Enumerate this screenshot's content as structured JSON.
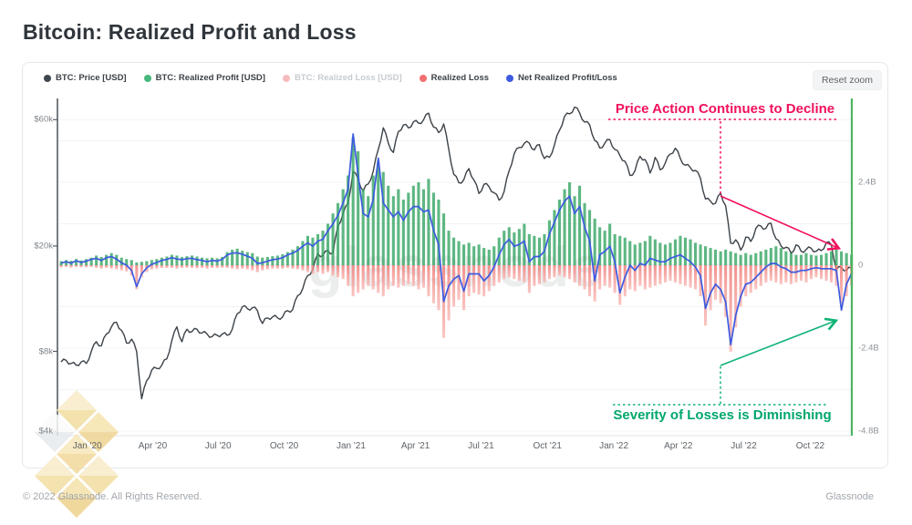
{
  "page": {
    "title": "Bitcoin: Realized Profit and Loss",
    "footer_left": "© 2022 Glassnode. All Rights Reserved.",
    "footer_right": "Glassnode",
    "watermark": "glassnode"
  },
  "toolbar": {
    "reset_zoom_label": "Reset zoom"
  },
  "legend": {
    "items": [
      {
        "label": "BTC: Price [USD]",
        "color": "#3f464d",
        "disabled": false
      },
      {
        "label": "BTC: Realized Profit [USD]",
        "color": "#47b87d",
        "disabled": false
      },
      {
        "label": "BTC: Realized Loss [USD]",
        "color": "#f5bcbc",
        "disabled": true
      },
      {
        "label": "Realized Loss",
        "color": "#f37070",
        "disabled": false
      },
      {
        "label": "Net Realized Profit/Loss",
        "color": "#3d5be0",
        "disabled": false
      }
    ]
  },
  "annotations": {
    "decline": {
      "text": "Price Action Continues to Decline",
      "color": "#f2105e"
    },
    "losses": {
      "text": "Severity of Losses is Diminishing",
      "color": "#00a76b"
    }
  },
  "chart_data": {
    "type": "mixed",
    "title": "Bitcoin: Realized Profit and Loss",
    "x_axis": {
      "unit": "weeks since 2019-11-25",
      "ticks": [
        {
          "label": "Jan '20",
          "week": 5.2
        },
        {
          "label": "Apr '20",
          "week": 18.2
        },
        {
          "label": "Jul '20",
          "week": 31.2
        },
        {
          "label": "Oct '20",
          "week": 44.3
        },
        {
          "label": "Jan '21",
          "week": 57.6
        },
        {
          "label": "Apr '21",
          "week": 70.4
        },
        {
          "label": "Jul '21",
          "week": 83.4
        },
        {
          "label": "Oct '21",
          "week": 96.6
        },
        {
          "label": "Jan '22",
          "week": 109.8
        },
        {
          "label": "Apr '22",
          "week": 122.6
        },
        {
          "label": "Jul '22",
          "week": 135.6
        },
        {
          "label": "Oct '22",
          "week": 148.8
        }
      ]
    },
    "left_axis": {
      "scale": "log",
      "unit": "USD",
      "range_k": [
        4,
        71
      ],
      "ticks": [
        {
          "label": "$60k",
          "value": 60
        },
        {
          "label": "$20k",
          "value": 20
        },
        {
          "label": "$8k",
          "value": 8
        },
        {
          "label": "$4k",
          "value": 4
        }
      ]
    },
    "right_axis": {
      "scale": "linear",
      "unit": "USD billions",
      "range_b": [
        -4.8,
        4.8
      ],
      "ticks": [
        {
          "label": "2.4B",
          "value": 2.4
        },
        {
          "label": "0",
          "value": 0
        },
        {
          "label": "-2.4B",
          "value": -2.4
        },
        {
          "label": "-4.8B",
          "value": -4.8
        }
      ],
      "gridline_step_b": 1.2
    },
    "series": [
      {
        "name": "BTC: Price [USD]",
        "type": "line",
        "axis": "left",
        "color": "#3c4248",
        "unit": "kUSD",
        "values": [
          7.3,
          7.4,
          7.2,
          7.1,
          7.3,
          7.2,
          8.0,
          8.7,
          8.4,
          9.3,
          9.9,
          10.3,
          9.6,
          8.6,
          8.9,
          8.0,
          5.3,
          6.2,
          6.8,
          6.9,
          7.1,
          7.5,
          8.8,
          9.9,
          8.7,
          9.7,
          9.5,
          9.7,
          9.4,
          9.3,
          9.1,
          9.2,
          9.3,
          9.2,
          9.7,
          11.1,
          11.8,
          11.6,
          11.7,
          11.4,
          10.2,
          10.7,
          10.8,
          10.7,
          10.8,
          11.4,
          11.5,
          13.0,
          13.8,
          15.5,
          16.3,
          18.7,
          18.4,
          19.2,
          18.8,
          23.8,
          26.5,
          29.0,
          38.2,
          35.8,
          32.3,
          34.3,
          38.3,
          46.3,
          55.9,
          48.9,
          45.1,
          54.1,
          57.3,
          55.8,
          58.9,
          58.2,
          59.9,
          63.5,
          56.2,
          53.6,
          57.8,
          46.4,
          37.3,
          34.7,
          35.6,
          39.2,
          35.5,
          31.6,
          34.2,
          33.5,
          31.8,
          29.8,
          32.1,
          38.5,
          44.6,
          47.1,
          48.8,
          48.9,
          46.1,
          48.3,
          42.8,
          43.2,
          48.2,
          54.7,
          61.7,
          63.1,
          66.9,
          63.6,
          58.7,
          57.3,
          50.1,
          46.9,
          48.9,
          50.4,
          46.3,
          43.9,
          41.8,
          36.9,
          38.5,
          43.6,
          42.4,
          37.7,
          43.2,
          38.8,
          41.1,
          44.5,
          46.8,
          42.8,
          40.4,
          39.5,
          38.6,
          36.0,
          30.1,
          29.5,
          29.0,
          31.7,
          28.4,
          20.5,
          21.1,
          19.3,
          21.6,
          20.8,
          23.3,
          23.8,
          23.3,
          24.4,
          21.3,
          20.0,
          19.8,
          18.8,
          20.2,
          19.1,
          19.4,
          19.6,
          19.1,
          19.2,
          20.6,
          20.2,
          16.3,
          16.6,
          16.2,
          16.5
        ]
      },
      {
        "name": "BTC: Realized Profit [USD]",
        "type": "bar",
        "axis": "right",
        "color": "#2fa35f",
        "unit": "B USD",
        "values": [
          0.12,
          0.15,
          0.13,
          0.18,
          0.14,
          0.18,
          0.22,
          0.28,
          0.24,
          0.3,
          0.35,
          0.3,
          0.22,
          0.18,
          0.15,
          0.08,
          0.1,
          0.12,
          0.15,
          0.18,
          0.22,
          0.25,
          0.3,
          0.28,
          0.24,
          0.26,
          0.28,
          0.25,
          0.22,
          0.2,
          0.22,
          0.2,
          0.24,
          0.38,
          0.45,
          0.48,
          0.42,
          0.38,
          0.35,
          0.25,
          0.22,
          0.24,
          0.26,
          0.28,
          0.32,
          0.38,
          0.45,
          0.55,
          0.7,
          0.85,
          0.8,
          0.9,
          1.0,
          1.2,
          1.5,
          1.8,
          2.2,
          2.6,
          3.7,
          3.3,
          2.2,
          2.0,
          2.6,
          3.0,
          2.7,
          2.3,
          2.0,
          2.2,
          1.9,
          2.1,
          2.3,
          2.4,
          2.2,
          2.5,
          2.1,
          1.9,
          1.5,
          1.0,
          0.8,
          0.7,
          0.6,
          0.65,
          0.55,
          0.6,
          0.5,
          0.45,
          0.55,
          0.8,
          1.0,
          1.1,
          0.95,
          1.05,
          1.2,
          0.9,
          0.85,
          0.8,
          0.9,
          1.3,
          1.6,
          1.9,
          2.2,
          2.4,
          2.0,
          2.3,
          1.8,
          1.6,
          1.35,
          1.1,
          1.0,
          1.2,
          0.9,
          0.85,
          0.8,
          0.7,
          0.6,
          0.65,
          0.7,
          0.85,
          0.75,
          0.65,
          0.6,
          0.65,
          0.75,
          0.85,
          0.8,
          0.75,
          0.65,
          0.6,
          0.55,
          0.5,
          0.45,
          0.4,
          0.45,
          0.4,
          0.35,
          0.3,
          0.35,
          0.3,
          0.35,
          0.4,
          0.45,
          0.5,
          0.55,
          0.5,
          0.4,
          0.35,
          0.3,
          0.3,
          0.35,
          0.3,
          0.28,
          0.3,
          0.35,
          0.4,
          0.45,
          0.4,
          0.35,
          0.3
        ]
      },
      {
        "name": "Realized Loss",
        "type": "bar",
        "axis": "right",
        "color": "#ee6b68",
        "unit": "B USD (magnitude, plotted downward)",
        "values": [
          0.06,
          0.05,
          0.07,
          0.05,
          0.06,
          0.06,
          0.05,
          0.08,
          0.1,
          0.08,
          0.1,
          0.12,
          0.15,
          0.18,
          0.3,
          0.7,
          0.35,
          0.2,
          0.12,
          0.1,
          0.08,
          0.08,
          0.08,
          0.1,
          0.08,
          0.07,
          0.08,
          0.09,
          0.08,
          0.1,
          0.08,
          0.08,
          0.07,
          0.08,
          0.1,
          0.12,
          0.1,
          0.12,
          0.15,
          0.2,
          0.15,
          0.12,
          0.1,
          0.1,
          0.1,
          0.08,
          0.1,
          0.12,
          0.15,
          0.2,
          0.25,
          0.2,
          0.25,
          0.2,
          0.3,
          0.35,
          0.4,
          0.6,
          0.9,
          0.8,
          0.7,
          0.6,
          0.7,
          0.8,
          0.9,
          0.7,
          0.6,
          0.65,
          0.6,
          0.55,
          0.6,
          0.7,
          0.65,
          0.9,
          1.1,
          1.3,
          2.1,
          1.6,
          1.2,
          1.0,
          1.3,
          0.9,
          0.8,
          0.85,
          0.9,
          0.75,
          0.6,
          0.5,
          0.4,
          0.35,
          0.4,
          0.45,
          0.5,
          0.8,
          0.6,
          0.55,
          0.5,
          0.4,
          0.35,
          0.3,
          0.35,
          0.4,
          0.5,
          0.6,
          0.7,
          0.9,
          1.05,
          0.7,
          0.6,
          0.65,
          0.8,
          1.15,
          0.9,
          0.7,
          0.75,
          0.6,
          0.7,
          0.65,
          0.6,
          0.55,
          0.5,
          0.45,
          0.5,
          0.55,
          0.6,
          0.65,
          0.7,
          0.9,
          1.75,
          1.3,
          1.0,
          1.1,
          1.5,
          2.5,
          1.8,
          1.2,
          0.9,
          0.8,
          0.7,
          0.6,
          0.5,
          0.45,
          0.5,
          0.55,
          0.5,
          0.55,
          0.5,
          0.45,
          0.5,
          0.4,
          0.35,
          0.4,
          0.45,
          0.5,
          0.6,
          1.1,
          0.9,
          0.6
        ]
      },
      {
        "name": "Net Realized Profit/Loss",
        "type": "line",
        "axis": "right",
        "color": "#3d5be0",
        "unit": "B USD",
        "values": [
          0.06,
          0.1,
          0.06,
          0.13,
          0.08,
          0.12,
          0.17,
          0.2,
          0.14,
          0.22,
          0.25,
          0.18,
          0.07,
          0.0,
          -0.15,
          -0.62,
          -0.25,
          -0.08,
          0.03,
          0.08,
          0.14,
          0.17,
          0.22,
          0.18,
          0.16,
          0.19,
          0.2,
          0.16,
          0.14,
          0.1,
          0.14,
          0.12,
          0.17,
          0.3,
          0.35,
          0.36,
          0.32,
          0.26,
          0.2,
          0.05,
          0.07,
          0.12,
          0.16,
          0.18,
          0.22,
          0.3,
          0.35,
          0.43,
          0.55,
          0.65,
          0.55,
          0.7,
          0.75,
          1.0,
          1.2,
          1.45,
          1.8,
          2.2,
          3.8,
          2.6,
          1.5,
          1.4,
          1.9,
          3.1,
          1.8,
          1.6,
          1.4,
          1.55,
          1.3,
          1.55,
          1.7,
          1.7,
          1.55,
          1.6,
          1.0,
          0.6,
          -1.05,
          -0.6,
          -0.4,
          -0.3,
          -0.75,
          -0.25,
          -0.25,
          -0.25,
          -0.45,
          -0.3,
          -0.05,
          0.3,
          0.6,
          0.75,
          0.55,
          0.6,
          0.7,
          0.1,
          0.25,
          0.25,
          0.4,
          0.9,
          1.25,
          1.6,
          1.85,
          2.0,
          1.5,
          1.7,
          1.1,
          0.7,
          -0.45,
          0.3,
          0.4,
          0.55,
          0.1,
          -0.8,
          -0.35,
          0.0,
          -0.15,
          0.05,
          0.0,
          0.2,
          0.15,
          0.1,
          0.1,
          0.2,
          0.25,
          0.3,
          0.2,
          0.1,
          -0.05,
          -0.3,
          -1.25,
          -0.8,
          -0.55,
          -0.7,
          -1.05,
          -2.3,
          -1.45,
          -0.9,
          -0.55,
          -0.5,
          -0.35,
          -0.2,
          -0.05,
          0.05,
          0.05,
          -0.05,
          -0.1,
          -0.2,
          -0.2,
          -0.15,
          -0.15,
          -0.1,
          -0.07,
          -0.1,
          -0.1,
          -0.1,
          -0.15,
          -1.3,
          -0.55,
          -0.25
        ]
      }
    ]
  }
}
